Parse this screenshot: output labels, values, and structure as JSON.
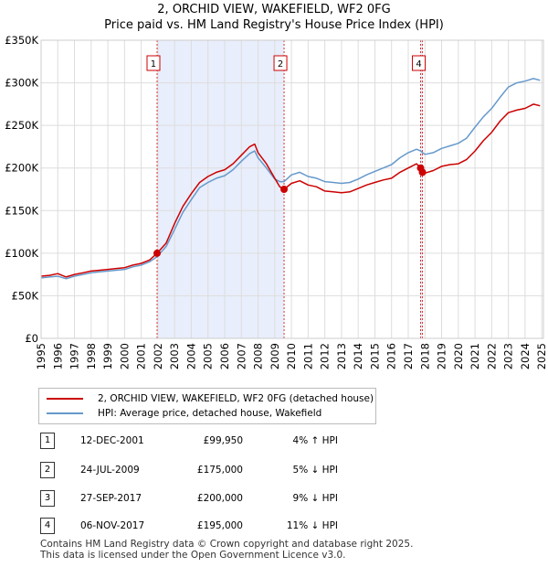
{
  "chart_data": {
    "type": "line",
    "title": "2, ORCHID VIEW, WAKEFIELD, WF2 0FG",
    "subtitle": "Price paid vs. HM Land Registry's House Price Index (HPI)",
    "xlim": [
      1995,
      2025.1
    ],
    "ylim": [
      0,
      350000
    ],
    "x_ticks": [
      1995,
      1996,
      1997,
      1998,
      1999,
      2000,
      2001,
      2002,
      2003,
      2004,
      2005,
      2006,
      2007,
      2008,
      2009,
      2010,
      2011,
      2012,
      2013,
      2014,
      2015,
      2016,
      2017,
      2018,
      2019,
      2020,
      2021,
      2022,
      2023,
      2024,
      2025
    ],
    "y_ticks": [
      {
        "value": 0,
        "label": "£0"
      },
      {
        "value": 50000,
        "label": "£50K"
      },
      {
        "value": 100000,
        "label": "£100K"
      },
      {
        "value": 150000,
        "label": "£150K"
      },
      {
        "value": 200000,
        "label": "£200K"
      },
      {
        "value": 250000,
        "label": "£250K"
      },
      {
        "value": 300000,
        "label": "£300K"
      },
      {
        "value": 350000,
        "label": "£350K"
      }
    ],
    "shaded_ranges": [
      {
        "from": 2001.95,
        "to": 2009.56
      },
      {
        "from": 2017.74,
        "to": 2017.85
      }
    ],
    "series": [
      {
        "name": "2, ORCHID VIEW, WAKEFIELD, WF2 0FG (detached house)",
        "color": "#cc0000",
        "points": [
          [
            1995,
            73000
          ],
          [
            1995.5,
            74000
          ],
          [
            1996,
            76000
          ],
          [
            1996.5,
            72000
          ],
          [
            1997,
            75000
          ],
          [
            1997.5,
            77000
          ],
          [
            1998,
            79000
          ],
          [
            1998.5,
            80000
          ],
          [
            1999,
            81000
          ],
          [
            1999.5,
            82000
          ],
          [
            2000,
            83000
          ],
          [
            2000.5,
            86000
          ],
          [
            2001,
            88000
          ],
          [
            2001.5,
            92000
          ],
          [
            2001.95,
            99950
          ],
          [
            2002.5,
            112000
          ],
          [
            2003,
            135000
          ],
          [
            2003.5,
            155000
          ],
          [
            2004,
            170000
          ],
          [
            2004.5,
            183000
          ],
          [
            2005,
            190000
          ],
          [
            2005.5,
            195000
          ],
          [
            2006,
            198000
          ],
          [
            2006.5,
            205000
          ],
          [
            2007,
            215000
          ],
          [
            2007.5,
            225000
          ],
          [
            2007.8,
            228000
          ],
          [
            2008,
            218000
          ],
          [
            2008.5,
            205000
          ],
          [
            2009,
            188000
          ],
          [
            2009.3,
            178000
          ],
          [
            2009.56,
            175000
          ],
          [
            2010,
            182000
          ],
          [
            2010.5,
            185000
          ],
          [
            2011,
            180000
          ],
          [
            2011.5,
            178000
          ],
          [
            2012,
            173000
          ],
          [
            2012.5,
            172000
          ],
          [
            2013,
            171000
          ],
          [
            2013.5,
            172000
          ],
          [
            2014,
            176000
          ],
          [
            2014.5,
            180000
          ],
          [
            2015,
            183000
          ],
          [
            2015.5,
            186000
          ],
          [
            2016,
            188000
          ],
          [
            2016.5,
            195000
          ],
          [
            2017,
            200000
          ],
          [
            2017.5,
            205000
          ],
          [
            2017.74,
            200000
          ],
          [
            2017.85,
            195000
          ],
          [
            2018,
            194000
          ],
          [
            2018.5,
            197000
          ],
          [
            2019,
            202000
          ],
          [
            2019.5,
            204000
          ],
          [
            2020,
            205000
          ],
          [
            2020.5,
            210000
          ],
          [
            2021,
            220000
          ],
          [
            2021.5,
            232000
          ],
          [
            2022,
            242000
          ],
          [
            2022.5,
            255000
          ],
          [
            2023,
            265000
          ],
          [
            2023.5,
            268000
          ],
          [
            2024,
            270000
          ],
          [
            2024.5,
            275000
          ],
          [
            2024.9,
            273000
          ]
        ]
      },
      {
        "name": "HPI: Average price, detached house, Wakefield",
        "color": "#6699cc",
        "points": [
          [
            1995,
            71000
          ],
          [
            1995.5,
            72000
          ],
          [
            1996,
            73000
          ],
          [
            1996.5,
            70000
          ],
          [
            1997,
            73000
          ],
          [
            1997.5,
            75000
          ],
          [
            1998,
            77000
          ],
          [
            1998.5,
            78000
          ],
          [
            1999,
            79000
          ],
          [
            1999.5,
            80000
          ],
          [
            2000,
            81000
          ],
          [
            2000.5,
            84000
          ],
          [
            2001,
            86000
          ],
          [
            2001.5,
            90000
          ],
          [
            2001.95,
            96000
          ],
          [
            2002.5,
            108000
          ],
          [
            2003,
            128000
          ],
          [
            2003.5,
            148000
          ],
          [
            2004,
            163000
          ],
          [
            2004.5,
            177000
          ],
          [
            2005,
            183000
          ],
          [
            2005.5,
            188000
          ],
          [
            2006,
            191000
          ],
          [
            2006.5,
            198000
          ],
          [
            2007,
            208000
          ],
          [
            2007.5,
            217000
          ],
          [
            2007.8,
            220000
          ],
          [
            2008,
            212000
          ],
          [
            2008.5,
            200000
          ],
          [
            2009,
            187000
          ],
          [
            2009.3,
            184000
          ],
          [
            2009.56,
            184000
          ],
          [
            2010,
            192000
          ],
          [
            2010.5,
            195000
          ],
          [
            2011,
            190000
          ],
          [
            2011.5,
            188000
          ],
          [
            2012,
            184000
          ],
          [
            2012.5,
            183000
          ],
          [
            2013,
            182000
          ],
          [
            2013.5,
            183000
          ],
          [
            2014,
            187000
          ],
          [
            2014.5,
            192000
          ],
          [
            2015,
            196000
          ],
          [
            2015.5,
            200000
          ],
          [
            2016,
            204000
          ],
          [
            2016.5,
            212000
          ],
          [
            2017,
            218000
          ],
          [
            2017.5,
            222000
          ],
          [
            2017.74,
            220000
          ],
          [
            2017.85,
            218000
          ],
          [
            2018,
            216000
          ],
          [
            2018.5,
            218000
          ],
          [
            2019,
            223000
          ],
          [
            2019.5,
            226000
          ],
          [
            2020,
            229000
          ],
          [
            2020.5,
            235000
          ],
          [
            2021,
            248000
          ],
          [
            2021.5,
            260000
          ],
          [
            2022,
            270000
          ],
          [
            2022.5,
            283000
          ],
          [
            2023,
            295000
          ],
          [
            2023.5,
            300000
          ],
          [
            2024,
            302000
          ],
          [
            2024.5,
            305000
          ],
          [
            2024.9,
            303000
          ]
        ]
      }
    ],
    "sales": [
      {
        "id": "1",
        "x": 2001.95,
        "value": 99950
      },
      {
        "id": "2",
        "x": 2009.56,
        "value": 175000
      },
      {
        "id": "3",
        "x": 2017.74,
        "value": 200000
      },
      {
        "id": "4",
        "x": 2017.85,
        "value": 195000
      }
    ],
    "marker_labels": [
      "1",
      "2",
      "4"
    ]
  },
  "legend": {
    "property": "2, ORCHID VIEW, WAKEFIELD, WF2 0FG (detached house)",
    "hpi": "HPI: Average price, detached house, Wakefield"
  },
  "transactions": [
    {
      "id": "1",
      "date": "12-DEC-2001",
      "price": "£99,950",
      "hpi": "4% ↑ HPI"
    },
    {
      "id": "2",
      "date": "24-JUL-2009",
      "price": "£175,000",
      "hpi": "5% ↓ HPI"
    },
    {
      "id": "3",
      "date": "27-SEP-2017",
      "price": "£200,000",
      "hpi": "9% ↓ HPI"
    },
    {
      "id": "4",
      "date": "06-NOV-2017",
      "price": "£195,000",
      "hpi": "11% ↓ HPI"
    }
  ],
  "footer": {
    "line1": "Contains HM Land Registry data © Crown copyright and database right 2025.",
    "line2": "This data is licensed under the Open Government Licence v3.0."
  }
}
